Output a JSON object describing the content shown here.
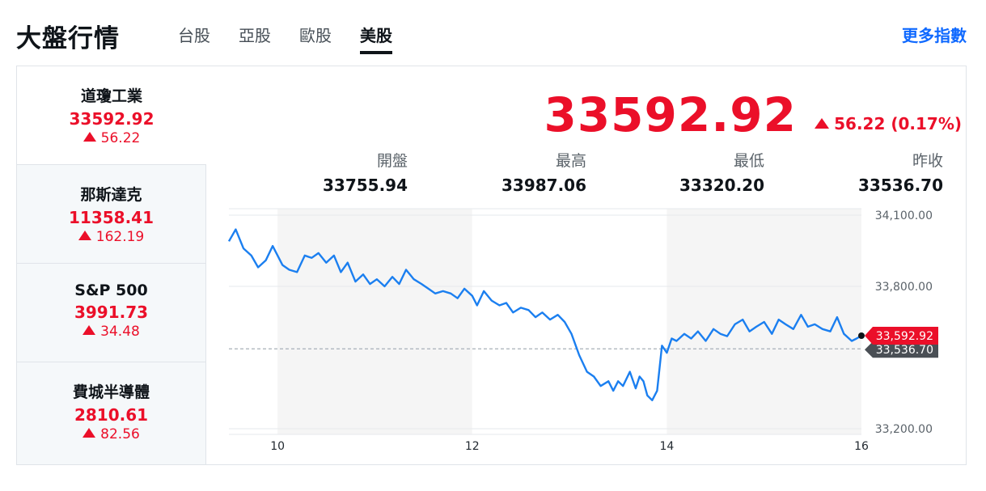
{
  "header": {
    "title": "大盤行情",
    "tabs": [
      {
        "label": "台股",
        "active": false
      },
      {
        "label": "亞股",
        "active": false
      },
      {
        "label": "歐股",
        "active": false
      },
      {
        "label": "美股",
        "active": true
      }
    ],
    "more_link": "更多指數"
  },
  "indices": [
    {
      "name": "道瓊工業",
      "price": "33592.92",
      "change": "56.22",
      "active": true
    },
    {
      "name": "那斯達克",
      "price": "11358.41",
      "change": "162.19",
      "active": false
    },
    {
      "name": "S&P 500",
      "price": "3991.73",
      "change": "34.48",
      "active": false
    },
    {
      "name": "費城半導體",
      "price": "2810.61",
      "change": "82.56",
      "active": false
    }
  ],
  "quote": {
    "price": "33592.92",
    "change": "56.22 (0.17%)",
    "stats": [
      {
        "label": "開盤",
        "value": "33755.94"
      },
      {
        "label": "最高",
        "value": "33987.06"
      },
      {
        "label": "最低",
        "value": "33320.20"
      },
      {
        "label": "昨收",
        "value": "33536.70"
      }
    ]
  },
  "colors": {
    "up": "#eb0f29",
    "line": "#1b7ff0",
    "accent": "#0f69ff"
  },
  "chart_data": {
    "type": "line",
    "x_ticks": [
      "10",
      "12",
      "14",
      "16"
    ],
    "y_ticks": [
      "34,100.00",
      "33,800.00",
      "33,200.00"
    ],
    "ylim": [
      33200,
      34100
    ],
    "xlim": [
      9.5,
      16
    ],
    "last_label": "33,592.92",
    "prev_close_label": "33,536.70",
    "prev_close": 33536.7,
    "x": [
      9.5,
      9.57,
      9.65,
      9.73,
      9.8,
      9.88,
      9.95,
      10.0,
      10.05,
      10.12,
      10.2,
      10.28,
      10.35,
      10.42,
      10.5,
      10.58,
      10.65,
      10.72,
      10.8,
      10.88,
      10.95,
      11.02,
      11.1,
      11.18,
      11.25,
      11.32,
      11.4,
      11.48,
      11.55,
      11.62,
      11.7,
      11.78,
      11.85,
      11.92,
      12.0,
      12.05,
      12.12,
      12.2,
      12.28,
      12.35,
      12.42,
      12.5,
      12.58,
      12.65,
      12.72,
      12.8,
      12.88,
      12.95,
      13.02,
      13.1,
      13.18,
      13.25,
      13.32,
      13.4,
      13.45,
      13.5,
      13.55,
      13.62,
      13.68,
      13.72,
      13.76,
      13.8,
      13.85,
      13.9,
      13.95,
      14.0,
      14.05,
      14.1,
      14.18,
      14.25,
      14.32,
      14.4,
      14.48,
      14.55,
      14.62,
      14.7,
      14.78,
      14.85,
      14.92,
      15.0,
      15.08,
      15.15,
      15.22,
      15.3,
      15.38,
      15.45,
      15.52,
      15.6,
      15.68,
      15.75,
      15.82,
      15.9,
      15.95,
      16.0
    ],
    "values": [
      33990,
      34040,
      33960,
      33930,
      33880,
      33910,
      33970,
      33930,
      33890,
      33870,
      33860,
      33930,
      33920,
      33940,
      33900,
      33930,
      33860,
      33900,
      33820,
      33850,
      33810,
      33830,
      33800,
      33840,
      33810,
      33870,
      33830,
      33810,
      33790,
      33770,
      33780,
      33770,
      33750,
      33790,
      33760,
      33720,
      33780,
      33740,
      33720,
      33730,
      33690,
      33710,
      33700,
      33670,
      33690,
      33660,
      33680,
      33650,
      33600,
      33510,
      33440,
      33420,
      33380,
      33400,
      33360,
      33400,
      33380,
      33440,
      33370,
      33420,
      33400,
      33340,
      33320,
      33360,
      33550,
      33520,
      33580,
      33570,
      33600,
      33580,
      33610,
      33570,
      33620,
      33600,
      33590,
      33640,
      33660,
      33610,
      33630,
      33650,
      33600,
      33660,
      33640,
      33620,
      33680,
      33630,
      33640,
      33620,
      33610,
      33670,
      33600,
      33570,
      33580,
      33592
    ]
  }
}
